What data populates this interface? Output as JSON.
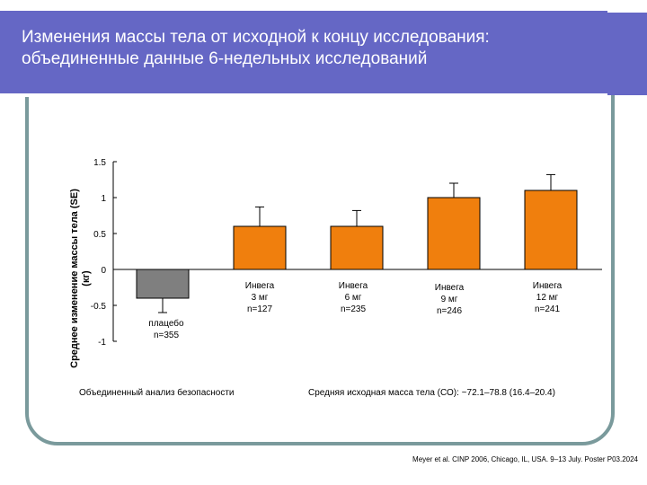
{
  "slide": {
    "title_line1": "Изменения массы тела от исходной к концу исследования:",
    "title_line2": "объединенные данные 6-недельных исследований",
    "note_left": "Объединенный анализ безопасности",
    "note_right": "Средняя исходная масса тела (СО): ~72.1–78.8 (16.4–20.4)",
    "credit": "Meyer et al. CINP 2006, Chicago, IL, USA. 9–13 July. Poster P03.2024"
  },
  "colors": {
    "title_bar": "#6567c5",
    "frame": "#7a9a9c",
    "bar_orange": "#f07f0d",
    "bar_gray": "#7f7f7f"
  },
  "chart_data": {
    "type": "bar",
    "title": "",
    "ylabel_line1": "Среднее изменение массы тела (SE)",
    "ylabel_line2": "(кг)",
    "ylim": [
      -1,
      1.5
    ],
    "yticks": [
      "1.5",
      "1",
      "0.5",
      "0",
      "-0.5",
      "-1"
    ],
    "ytick_values": [
      1.5,
      1,
      0.5,
      0,
      -0.5,
      -1
    ],
    "categories": [
      {
        "line1": "плацебо",
        "line2": "n=355",
        "dose": ""
      },
      {
        "line1": "Инвега",
        "line2": "3 мг",
        "dose": "n=127"
      },
      {
        "line1": "Инвега",
        "line2": "6 мг",
        "dose": "n=235"
      },
      {
        "line1": "Инвега",
        "line2": "9 мг",
        "dose": "n=246"
      },
      {
        "line1": "Инвега",
        "line2": "12 мг",
        "dose": "n=241"
      }
    ],
    "values": [
      -0.4,
      0.6,
      0.6,
      1.0,
      1.1
    ],
    "errors": [
      0.2,
      0.27,
      0.22,
      0.2,
      0.22
    ],
    "bar_colors": [
      "#7f7f7f",
      "#f07f0d",
      "#f07f0d",
      "#f07f0d",
      "#f07f0d"
    ],
    "grid": false,
    "legend": "none"
  }
}
